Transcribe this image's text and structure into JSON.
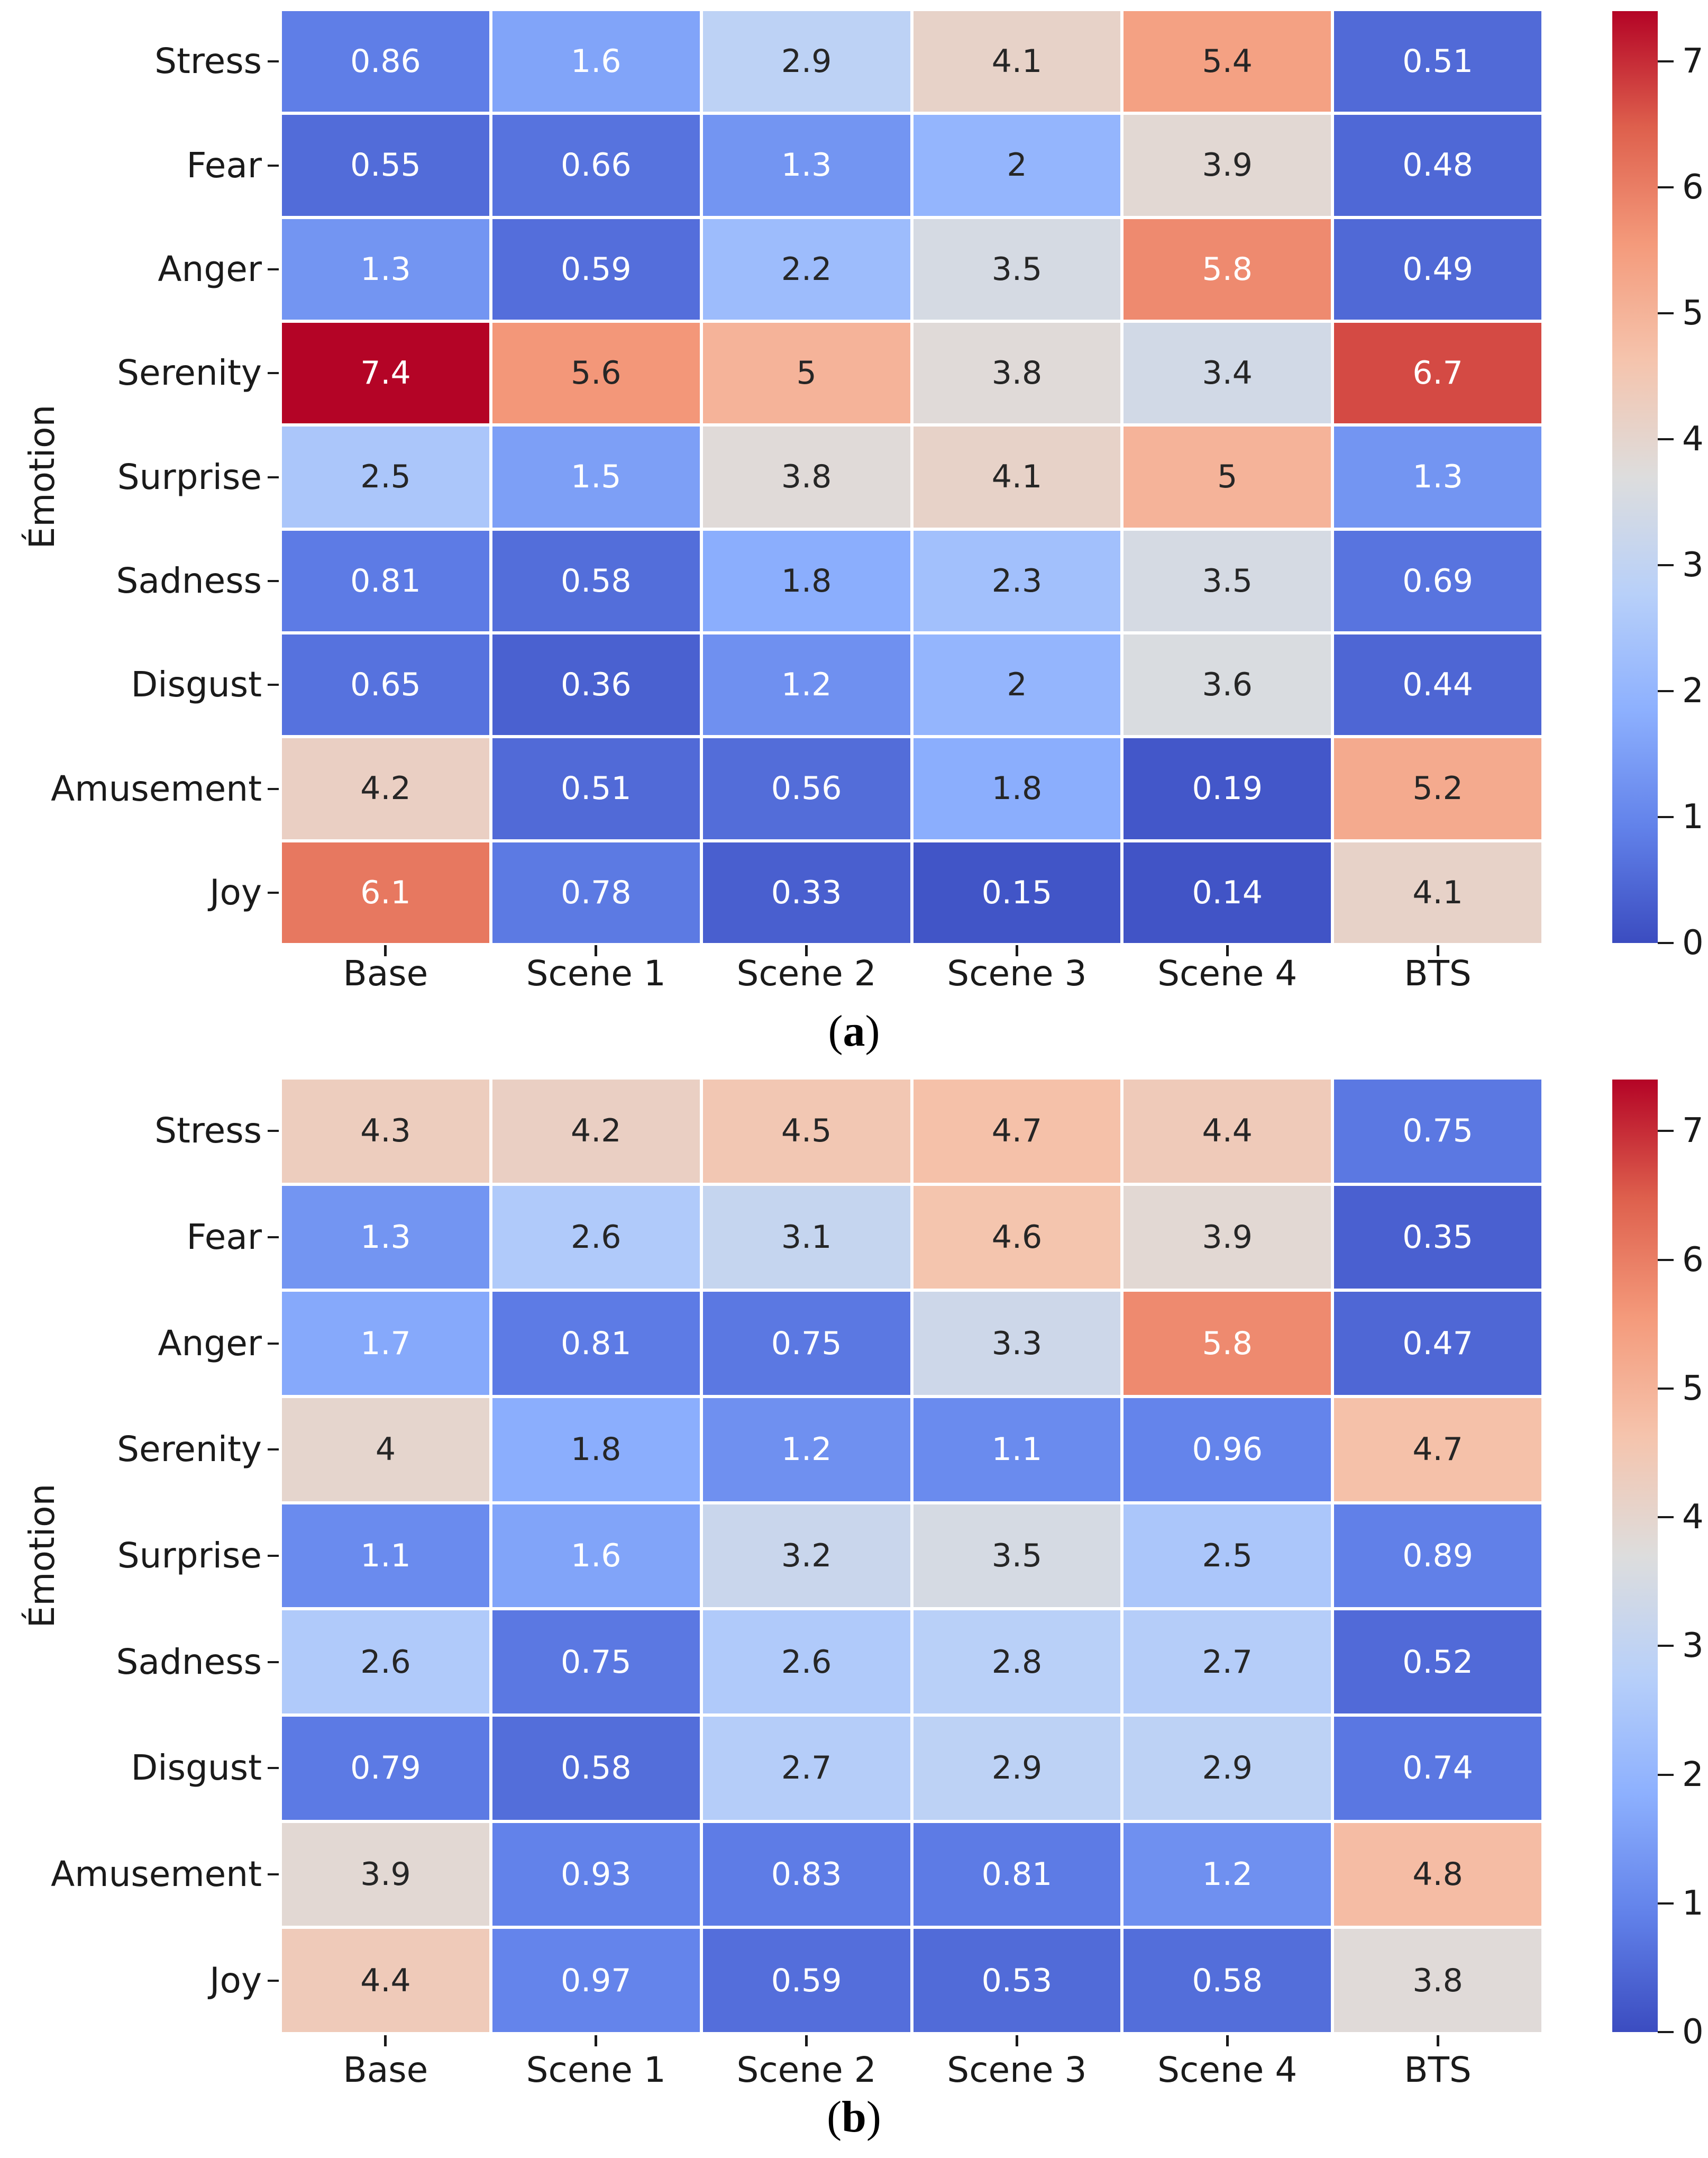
{
  "chart_data": [
    {
      "type": "heatmap",
      "panel": "a",
      "ylabel": "Émotion",
      "caption": {
        "open": "(",
        "letter": "a",
        "close": ")"
      },
      "columns": [
        "Base",
        "Scene 1",
        "Scene 2",
        "Scene 3",
        "Scene 4",
        "BTS"
      ],
      "rows": [
        "Stress",
        "Fear",
        "Anger",
        "Serenity",
        "Surprise",
        "Sadness",
        "Disgust",
        "Amusement",
        "Joy"
      ],
      "values": [
        [
          0.86,
          1.6,
          2.9,
          4.1,
          5.4,
          0.51
        ],
        [
          0.55,
          0.66,
          1.3,
          2,
          3.9,
          0.48
        ],
        [
          1.3,
          0.59,
          2.2,
          3.5,
          5.8,
          0.49
        ],
        [
          7.4,
          5.6,
          5,
          3.8,
          3.4,
          6.7
        ],
        [
          2.5,
          1.5,
          3.8,
          4.1,
          5,
          1.3
        ],
        [
          0.81,
          0.58,
          1.8,
          2.3,
          3.5,
          0.69
        ],
        [
          0.65,
          0.36,
          1.2,
          2,
          3.6,
          0.44
        ],
        [
          4.2,
          0.51,
          0.56,
          1.8,
          0.19,
          5.2
        ],
        [
          6.1,
          0.78,
          0.33,
          0.15,
          0.14,
          4.1
        ]
      ],
      "colorbar": {
        "ticks": [
          0,
          1,
          2,
          3,
          4,
          5,
          6,
          7
        ],
        "vmin": 0,
        "vmax": 7.4
      },
      "colormap": {
        "name": "coolwarm",
        "anchors": [
          "#3B4CC0",
          "#6282EA",
          "#8DB0FE",
          "#B8D0F9",
          "#DDDDDD",
          "#F5C4AD",
          "#F49A7B",
          "#DE604D",
          "#B40426"
        ]
      },
      "annotation_text_colors": {
        "dark": "#262626",
        "light": "#FFFFFF"
      },
      "grid": true,
      "legend_position": "right-colorbar"
    },
    {
      "type": "heatmap",
      "panel": "b",
      "ylabel": "Émotion",
      "caption": {
        "open": "(",
        "letter": "b",
        "close": ")"
      },
      "columns": [
        "Base",
        "Scene 1",
        "Scene 2",
        "Scene 3",
        "Scene 4",
        "BTS"
      ],
      "rows": [
        "Stress",
        "Fear",
        "Anger",
        "Serenity",
        "Surprise",
        "Sadness",
        "Disgust",
        "Amusement",
        "Joy"
      ],
      "values": [
        [
          4.3,
          4.2,
          4.5,
          4.7,
          4.4,
          0.75
        ],
        [
          1.3,
          2.6,
          3.1,
          4.6,
          3.9,
          0.35
        ],
        [
          1.7,
          0.81,
          0.75,
          3.3,
          5.8,
          0.47
        ],
        [
          4,
          1.8,
          1.2,
          1.1,
          0.96,
          4.7
        ],
        [
          1.1,
          1.6,
          3.2,
          3.5,
          2.5,
          0.89
        ],
        [
          2.6,
          0.75,
          2.6,
          2.8,
          2.7,
          0.52
        ],
        [
          0.79,
          0.58,
          2.7,
          2.9,
          2.9,
          0.74
        ],
        [
          3.9,
          0.93,
          0.83,
          0.81,
          1.2,
          4.8
        ],
        [
          4.4,
          0.97,
          0.59,
          0.53,
          0.58,
          3.8
        ]
      ],
      "colorbar": {
        "ticks": [
          0,
          1,
          2,
          3,
          4,
          5,
          6,
          7
        ],
        "vmin": 0,
        "vmax": 7.4
      },
      "colormap": {
        "name": "coolwarm",
        "anchors": [
          "#3B4CC0",
          "#6282EA",
          "#8DB0FE",
          "#B8D0F9",
          "#DDDDDD",
          "#F5C4AD",
          "#F49A7B",
          "#DE604D",
          "#B40426"
        ]
      },
      "annotation_text_colors": {
        "dark": "#262626",
        "light": "#FFFFFF"
      },
      "grid": true,
      "legend_position": "right-colorbar"
    }
  ]
}
